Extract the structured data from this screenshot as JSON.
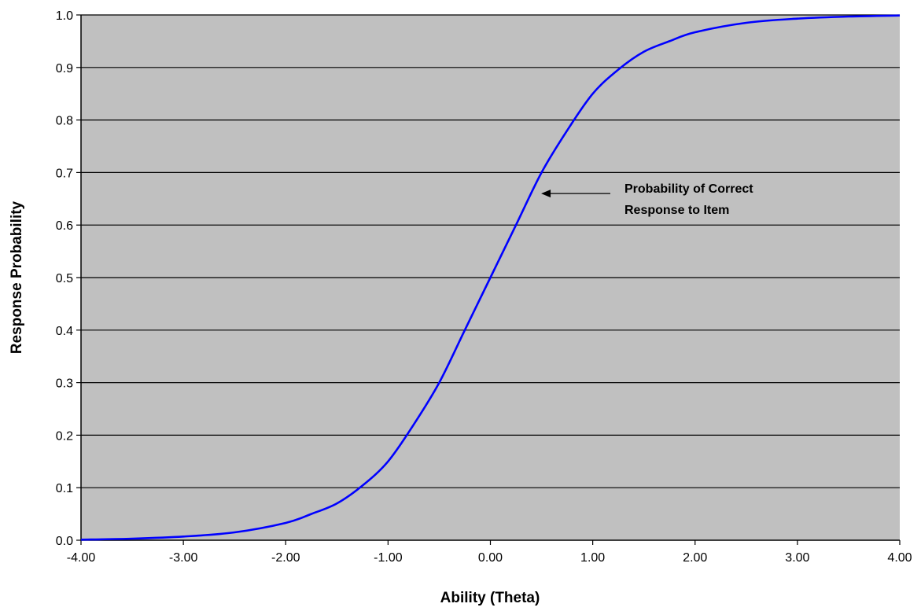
{
  "chart_data": {
    "type": "line",
    "title": "",
    "xlabel": "Ability (Theta)",
    "ylabel": "Response Probability",
    "xlim": [
      -4,
      4
    ],
    "ylim": [
      0,
      1
    ],
    "x_ticks": [
      "-4.00",
      "-3.00",
      "-2.00",
      "-1.00",
      "0.00",
      "1.00",
      "2.00",
      "3.00",
      "4.00"
    ],
    "y_ticks": [
      "0.0",
      "0.1",
      "0.2",
      "0.3",
      "0.4",
      "0.5",
      "0.6",
      "0.7",
      "0.8",
      "0.9",
      "1.0"
    ],
    "grid": "horizontal",
    "plot_background": "#c0c0c0",
    "gridline_color": "#000000",
    "series": [
      {
        "name": "",
        "color": "#0000ff",
        "x": [
          -4.0,
          -3.5,
          -3.0,
          -2.5,
          -2.0,
          -1.75,
          -1.5,
          -1.25,
          -1.0,
          -0.75,
          -0.5,
          -0.25,
          0.0,
          0.25,
          0.5,
          0.75,
          1.0,
          1.25,
          1.5,
          1.75,
          2.0,
          2.5,
          3.0,
          3.5,
          4.0
        ],
        "y": [
          0.001,
          0.003,
          0.007,
          0.015,
          0.033,
          0.05,
          0.07,
          0.104,
          0.15,
          0.22,
          0.3,
          0.4,
          0.5,
          0.6,
          0.7,
          0.78,
          0.85,
          0.896,
          0.93,
          0.95,
          0.967,
          0.985,
          0.993,
          0.997,
          0.999
        ]
      }
    ],
    "annotation": {
      "lines": [
        "Probability of Correct",
        "Response to Item"
      ],
      "points_to_x": 0.45,
      "points_to_y": 0.66
    }
  }
}
